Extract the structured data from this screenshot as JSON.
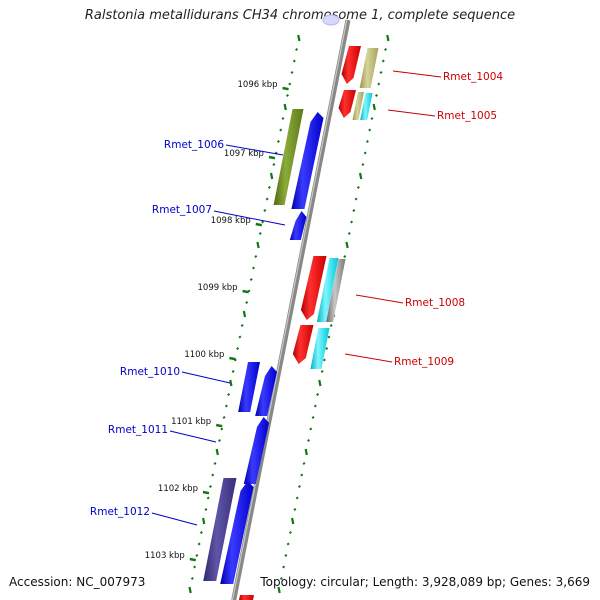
{
  "title": "Ralstonia metallidurans CH34 chromosome 1, complete sequence",
  "accession": "Accession: NC_007973",
  "summary": "Topology: circular; Length: 3,928,089 bp; Genes: 3,669",
  "colors": {
    "reverse_label": "#0000c8",
    "forward_label": "#cc0000",
    "reverse_gene": "#0000ee",
    "forward_gene": "#ee0000",
    "tick": "#117711",
    "backbone": "#888888"
  },
  "ruler": [
    {
      "label": "1096 kbp"
    },
    {
      "label": "1097 kbp"
    },
    {
      "label": "1098 kbp"
    },
    {
      "label": "1099 kbp"
    },
    {
      "label": "1100 kbp"
    },
    {
      "label": "1101 kbp"
    },
    {
      "label": "1102 kbp"
    },
    {
      "label": "1103 kbp"
    }
  ],
  "genes": [
    {
      "name": "Rmet_1004",
      "strand": "forward"
    },
    {
      "name": "Rmet_1005",
      "strand": "forward"
    },
    {
      "name": "Rmet_1006",
      "strand": "reverse"
    },
    {
      "name": "Rmet_1007",
      "strand": "reverse"
    },
    {
      "name": "Rmet_1008",
      "strand": "forward"
    },
    {
      "name": "Rmet_1009",
      "strand": "forward"
    },
    {
      "name": "Rmet_1010",
      "strand": "reverse"
    },
    {
      "name": "Rmet_1011",
      "strand": "reverse"
    },
    {
      "name": "Rmet_1012",
      "strand": "reverse"
    }
  ]
}
